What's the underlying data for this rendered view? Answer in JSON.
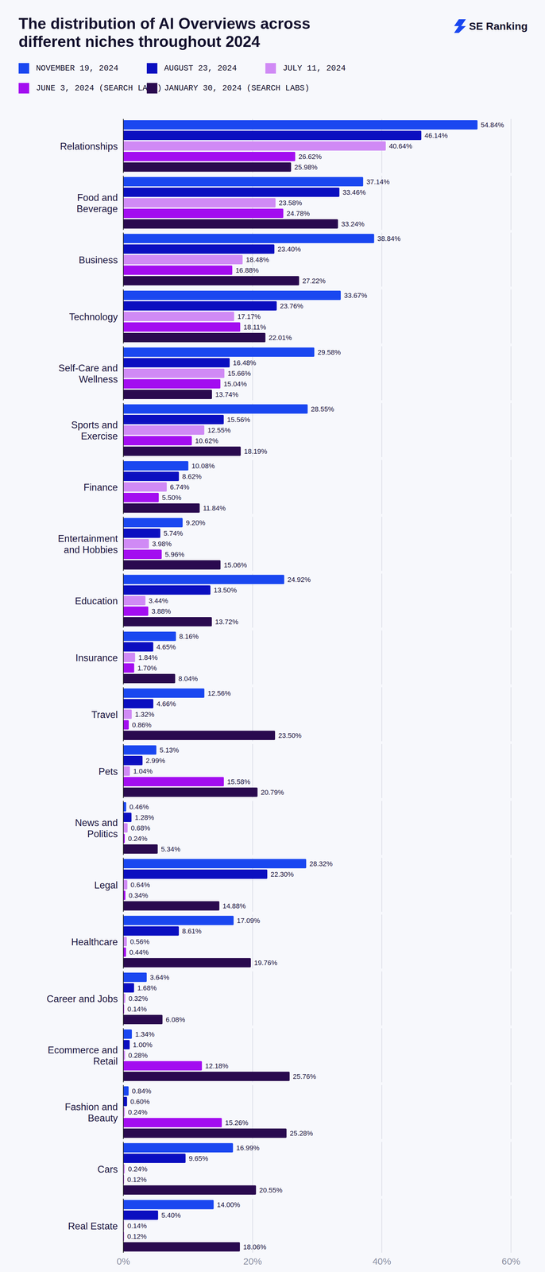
{
  "chart_data": {
    "type": "bar",
    "orientation": "horizontal",
    "title": "The distribution of AI Overviews across different niches throughout 2024",
    "brand": "SE Ranking",
    "categories": [
      "Relationships",
      "Food and Beverage",
      "Business",
      "Technology",
      "Self-Care and Wellness",
      "Sports and Exercise",
      "Finance",
      "Entertainment and Hobbies",
      "Education",
      "Insurance",
      "Travel",
      "Pets",
      "News and Politics",
      "Legal",
      "Healthcare",
      "Career and Jobs",
      "Ecommerce and Retail",
      "Fashion and Beauty",
      "Cars",
      "Real Estate"
    ],
    "series": [
      {
        "name": "NOVEMBER 19, 2024",
        "color": "#1a47f0",
        "values": [
          54.84,
          37.14,
          38.84,
          33.67,
          29.58,
          28.55,
          10.08,
          9.2,
          24.92,
          8.16,
          12.56,
          5.13,
          0.46,
          28.32,
          17.09,
          3.64,
          1.34,
          0.84,
          16.99,
          14.0
        ],
        "value_labels": [
          "54.84%",
          "37.14%",
          "38.84%",
          "33.67%",
          "29.58%",
          "28.55%",
          "10.08%",
          "9.20%",
          "24.92%",
          "8.16%",
          "12.56%",
          "5.13%",
          "0.46%",
          "28.32%",
          "17.09%",
          "3.64%",
          "1.34%",
          "0.84%",
          "16.99%",
          "14.00%"
        ]
      },
      {
        "name": "AUGUST 23, 2024",
        "color": "#0b0fc0",
        "values": [
          46.14,
          33.46,
          23.4,
          23.76,
          16.48,
          15.56,
          8.62,
          5.74,
          13.5,
          4.65,
          4.66,
          2.99,
          1.28,
          22.3,
          8.61,
          1.68,
          1.0,
          0.6,
          9.65,
          5.4
        ],
        "value_labels": [
          "46.14%",
          "33.46%",
          "23.40%",
          "23.76%",
          "16.48%",
          "15.56%",
          "8.62%",
          "5.74%",
          "13.50%",
          "4.65%",
          "4.66%",
          "2.99%",
          "1.28%",
          "22.30%",
          "8.61%",
          "1.68%",
          "1.00%",
          "0.60%",
          "9.65%",
          "5.40%"
        ]
      },
      {
        "name": "JULY 11, 2024",
        "color": "#d08af5",
        "values": [
          40.64,
          23.58,
          18.48,
          17.17,
          15.66,
          12.55,
          6.74,
          3.98,
          3.44,
          1.84,
          1.32,
          1.04,
          0.68,
          0.64,
          0.56,
          0.32,
          0.28,
          0.24,
          0.24,
          0.14
        ],
        "value_labels": [
          "40.64%",
          "23.58%",
          "18.48%",
          "17.17%",
          "15.66%",
          "12.55%",
          "6.74%",
          "3.98%",
          "3.44%",
          "1.84%",
          "1.32%",
          "1.04%",
          "0.68%",
          "0.64%",
          "0.56%",
          "0.32%",
          "0.28%",
          "0.24%",
          "0.24%",
          "0.14%"
        ]
      },
      {
        "name": "JUNE 3, 2024 (SEARCH LABS)",
        "color": "#a30df0",
        "values": [
          26.62,
          24.78,
          16.88,
          18.11,
          15.04,
          10.62,
          5.5,
          5.96,
          3.88,
          1.7,
          0.86,
          15.58,
          0.24,
          0.34,
          0.44,
          0.14,
          12.18,
          15.26,
          0.12,
          0.12
        ],
        "value_labels": [
          "26.62%",
          "24.78%",
          "16.88%",
          "18.11%",
          "15.04%",
          "10.62%",
          "5.50%",
          "5.96%",
          "3.88%",
          "1.70%",
          "0.86%",
          "15.58%",
          "0.24%",
          "0.34%",
          "0.44%",
          "0.14%",
          "12.18%",
          "15.26%",
          "0.12%",
          "0.12%"
        ]
      },
      {
        "name": "JANUARY 30, 2024 (SEARCH LABS)",
        "color": "#2a0a4f",
        "values": [
          25.98,
          33.24,
          27.22,
          22.01,
          13.74,
          18.19,
          11.84,
          15.06,
          13.72,
          8.04,
          23.5,
          20.79,
          5.34,
          14.88,
          19.76,
          6.08,
          25.76,
          25.28,
          20.55,
          18.06
        ],
        "value_labels": [
          "25.98%",
          "33.24%",
          "27.22%",
          "22.01%",
          "13.74%",
          "18.19%",
          "11.84%",
          "15.06%",
          "13.72%",
          "8.04%",
          "23.50%",
          "20.79%",
          "5.34%",
          "14.88%",
          "19.76%",
          "6.08%",
          "25.76%",
          "25.28%",
          "20.55%",
          "18.06%"
        ]
      }
    ],
    "xlim": [
      0,
      60
    ],
    "xticks": [
      {
        "value": 0,
        "label": "0%"
      },
      {
        "value": 20,
        "label": "20%"
      },
      {
        "value": 40,
        "label": "40%"
      },
      {
        "value": 60,
        "label": "60%"
      }
    ],
    "grid": true,
    "data_labels": true,
    "legend": "top-left"
  }
}
